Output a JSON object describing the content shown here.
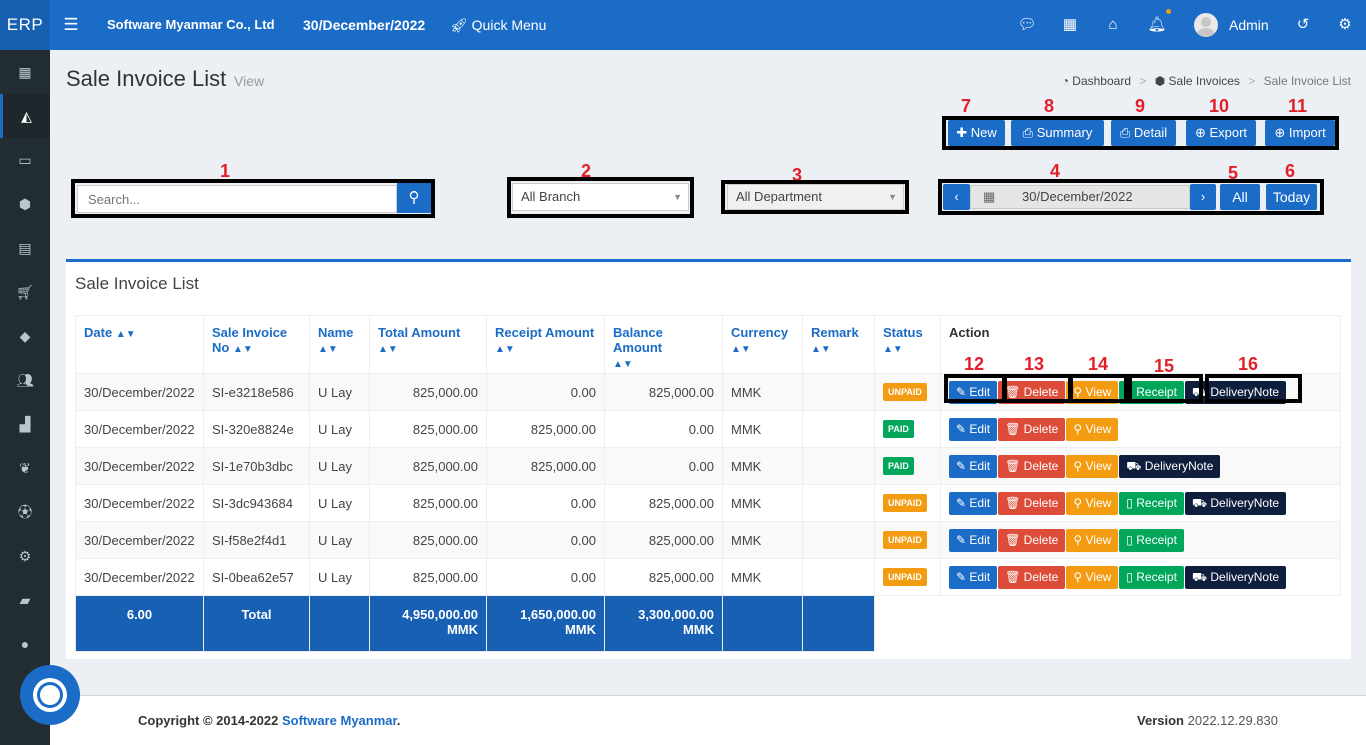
{
  "topbar": {
    "logo": "ERP",
    "company": "Software Myanmar Co., Ltd",
    "date": "30/December/2022",
    "quick_menu": "Quick Menu",
    "user": "Admin"
  },
  "page": {
    "title": "Sale Invoice List",
    "subtitle": "View",
    "breadcrumb": [
      "Dashboard",
      "Sale Invoices",
      "Sale Invoice List"
    ]
  },
  "annotations": [
    "1",
    "2",
    "3",
    "4",
    "5",
    "6",
    "7",
    "8",
    "9",
    "10",
    "11",
    "12",
    "13",
    "14",
    "15",
    "16"
  ],
  "toolbar": {
    "new": "New",
    "summary": "Summary",
    "detail": "Detail",
    "export": "Export",
    "import": "Import"
  },
  "filters": {
    "search_placeholder": "Search...",
    "branch": "All Branch",
    "department": "All Department",
    "date": "30/December/2022",
    "all": "All",
    "today": "Today"
  },
  "list": {
    "title": "Sale Invoice List",
    "columns": [
      "Date",
      "Sale Invoice No",
      "Name",
      "Total Amount",
      "Receipt Amount",
      "Balance Amount",
      "Currency",
      "Remark",
      "Status",
      "Action"
    ],
    "rows": [
      {
        "date": "30/December/2022",
        "no": "SI-e3218e586",
        "name": "U Lay",
        "total": "825,000.00",
        "receipt": "0.00",
        "balance": "825,000.00",
        "currency": "MMK",
        "remark": "",
        "status": "UNPAID",
        "actions": [
          "Edit",
          "Delete",
          "View",
          "Receipt",
          "DeliveryNote"
        ]
      },
      {
        "date": "30/December/2022",
        "no": "SI-320e8824e",
        "name": "U Lay",
        "total": "825,000.00",
        "receipt": "825,000.00",
        "balance": "0.00",
        "currency": "MMK",
        "remark": "",
        "status": "PAID",
        "actions": [
          "Edit",
          "Delete",
          "View"
        ]
      },
      {
        "date": "30/December/2022",
        "no": "SI-1e70b3dbc",
        "name": "U Lay",
        "total": "825,000.00",
        "receipt": "825,000.00",
        "balance": "0.00",
        "currency": "MMK",
        "remark": "",
        "status": "PAID",
        "actions": [
          "Edit",
          "Delete",
          "View",
          "DeliveryNote"
        ]
      },
      {
        "date": "30/December/2022",
        "no": "SI-3dc943684",
        "name": "U Lay",
        "total": "825,000.00",
        "receipt": "0.00",
        "balance": "825,000.00",
        "currency": "MMK",
        "remark": "",
        "status": "UNPAID",
        "actions": [
          "Edit",
          "Delete",
          "View",
          "Receipt",
          "DeliveryNote"
        ]
      },
      {
        "date": "30/December/2022",
        "no": "SI-f58e2f4d1",
        "name": "U Lay",
        "total": "825,000.00",
        "receipt": "0.00",
        "balance": "825,000.00",
        "currency": "MMK",
        "remark": "",
        "status": "UNPAID",
        "actions": [
          "Edit",
          "Delete",
          "View",
          "Receipt"
        ]
      },
      {
        "date": "30/December/2022",
        "no": "SI-0bea62e57",
        "name": "U Lay",
        "total": "825,000.00",
        "receipt": "0.00",
        "balance": "825,000.00",
        "currency": "MMK",
        "remark": "",
        "status": "UNPAID",
        "actions": [
          "Edit",
          "Delete",
          "View",
          "Receipt",
          "DeliveryNote"
        ]
      }
    ],
    "totals": {
      "count": "6.00",
      "label": "Total",
      "total": "4,950,000.00",
      "receipt": "1,650,000.00",
      "balance": "3,300,000.00",
      "unit": "MMK"
    }
  },
  "footer": {
    "copyright": "Copyright © 2014-2022",
    "company": "Software Myanmar",
    "version_label": "Version",
    "version": "2022.12.29.830"
  },
  "colors": {
    "primary": "#1b6cc6",
    "danger": "#dd4b39",
    "warning": "#f39c12",
    "success": "#00a65a",
    "dark": "#0f1e3c",
    "sidebar": "#222d32",
    "annotation": "#e3202a"
  }
}
